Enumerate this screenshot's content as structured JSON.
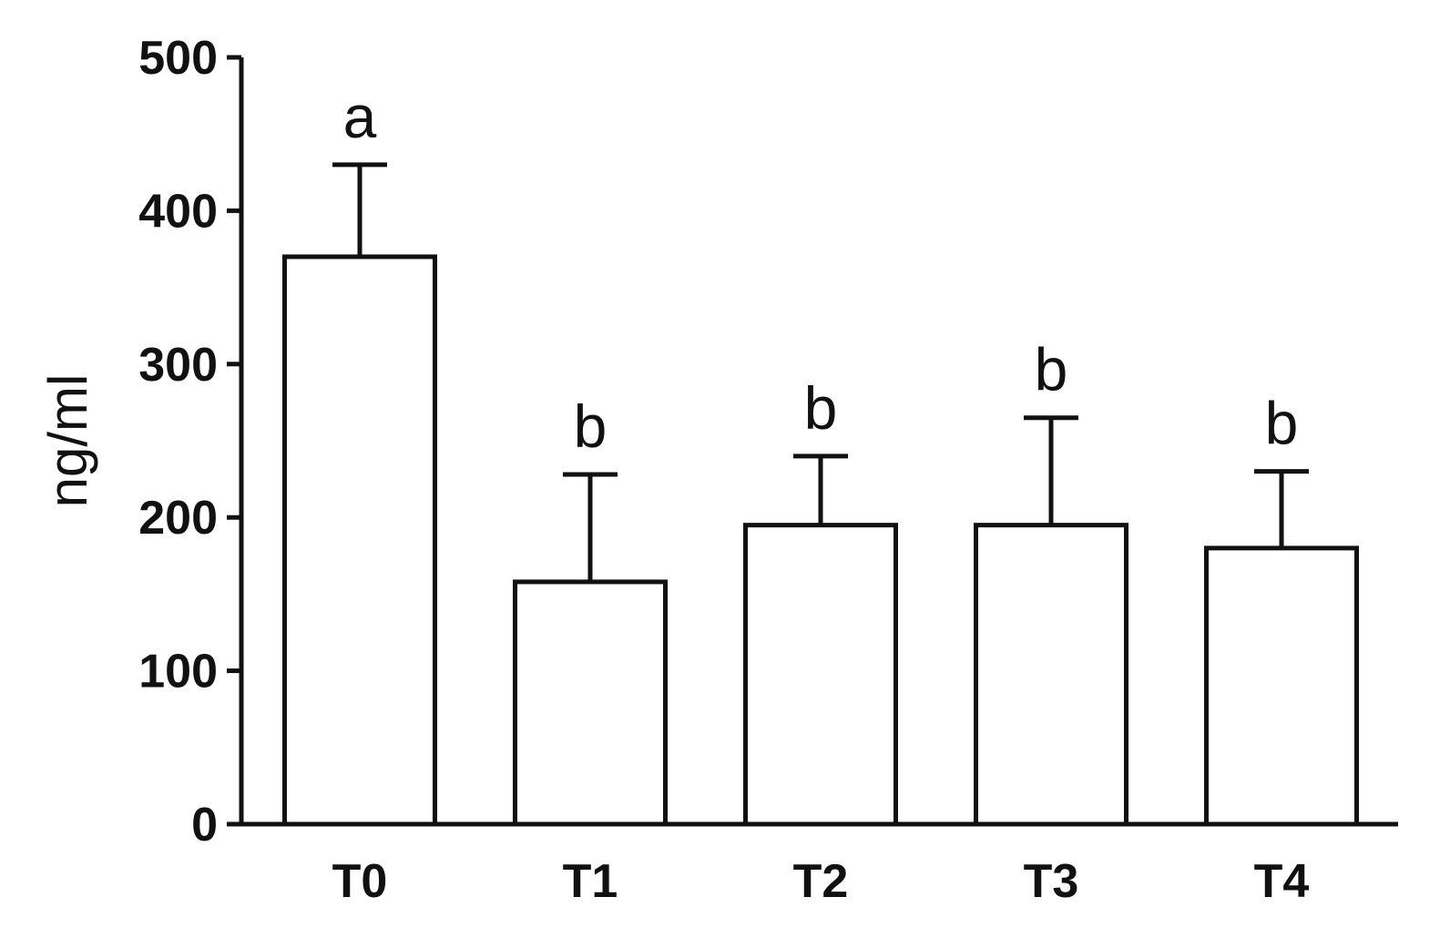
{
  "chart_data": {
    "type": "bar",
    "title": "",
    "xlabel": "",
    "ylabel": "ng/ml",
    "ylim": [
      0,
      500
    ],
    "yticks": [
      0,
      100,
      200,
      300,
      400,
      500
    ],
    "categories": [
      "T0",
      "T1",
      "T2",
      "T3",
      "T4"
    ],
    "values": [
      370,
      158,
      195,
      195,
      180
    ],
    "error": [
      60,
      70,
      45,
      70,
      50
    ],
    "significance": [
      "a",
      "b",
      "b",
      "b",
      "b"
    ],
    "grid": false,
    "legend": "none",
    "colors": {
      "bar_fill": "#ffffff",
      "stroke": "#111111"
    }
  }
}
